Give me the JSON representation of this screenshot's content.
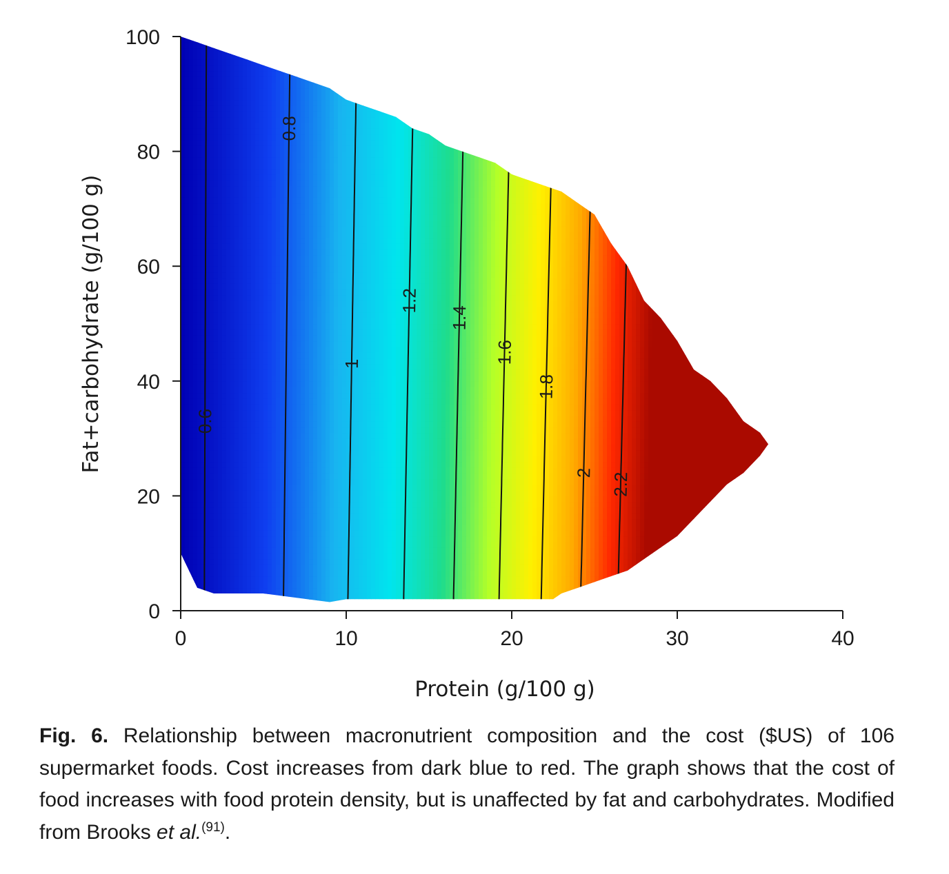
{
  "chart_data": {
    "type": "heatmap",
    "title": "",
    "xlabel": "Protein (g/100 g)",
    "ylabel": "Fat+carbohydrate (g/100 g)",
    "xlim": [
      0,
      40
    ],
    "ylim": [
      0,
      100
    ],
    "x_ticks": [
      "0",
      "10",
      "20",
      "30",
      "40"
    ],
    "y_ticks": [
      "0",
      "20",
      "40",
      "60",
      "80",
      "100"
    ],
    "colormap": [
      "#0000b4",
      "#0f3ff0",
      "#18b4f0",
      "#00e5ee",
      "#1edc8c",
      "#b4ff28",
      "#fff000",
      "#ffaa00",
      "#ff2800",
      "#aa0a00"
    ],
    "color_range": [
      0.55,
      2.35
    ],
    "grid": false,
    "legend": "none",
    "region_boundary": {
      "x": [
        0,
        1,
        2,
        3,
        4,
        5,
        6,
        7,
        8,
        9,
        10,
        11,
        12,
        13,
        14,
        15,
        16,
        17,
        18,
        19,
        20,
        21,
        22,
        23,
        24,
        25,
        26,
        27,
        28,
        29,
        30,
        31,
        32,
        33,
        34,
        35,
        35.5,
        35,
        34,
        33,
        32,
        31,
        30,
        29,
        28,
        27,
        26,
        25,
        24,
        23,
        22.5,
        20,
        15,
        10,
        9,
        5,
        2,
        1,
        0
      ],
      "y": [
        100,
        99,
        98,
        97,
        96,
        95,
        94,
        93,
        92,
        91,
        89,
        88,
        87,
        86,
        84,
        83,
        81,
        80,
        79,
        78,
        76,
        75,
        74,
        73,
        71,
        69,
        64,
        60,
        54,
        51,
        47,
        42,
        40,
        37,
        33,
        31,
        29,
        27,
        24,
        22,
        19,
        16,
        13,
        11,
        9,
        7,
        6,
        5,
        4,
        3,
        2,
        2,
        2,
        2,
        1.5,
        3,
        3,
        4,
        10
      ]
    },
    "contours": [
      {
        "level": 0.6,
        "label": "0.6"
      },
      {
        "level": 0.8,
        "label": "0.8"
      },
      {
        "level": 1.0,
        "label": "1"
      },
      {
        "level": 1.2,
        "label": "1.2"
      },
      {
        "level": 1.4,
        "label": "1.4"
      },
      {
        "level": 1.6,
        "label": "1.6"
      },
      {
        "level": 1.8,
        "label": "1.8"
      },
      {
        "level": 2.0,
        "label": "2"
      },
      {
        "level": 2.2,
        "label": "2.2"
      }
    ]
  },
  "caption": {
    "fig_label": "Fig. 6.",
    "text_before_italic": " Relationship between macronutrient composition and the cost ($US) of 106 supermarket foods. Cost increases from dark blue to red. The graph shows that the cost of food increases with food protein density, but is unaffected by fat and carbohydrates. Modified from Brooks ",
    "italic": "et al.",
    "reference": "(91)",
    "end": "."
  }
}
